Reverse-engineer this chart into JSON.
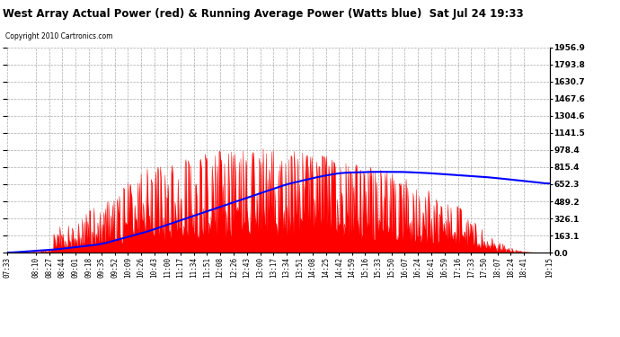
{
  "title": "West Array Actual Power (red) & Running Average Power (Watts blue)  Sat Jul 24 19:33",
  "copyright": "Copyright 2010 Cartronics.com",
  "ymax": 1956.9,
  "yticks": [
    0.0,
    163.1,
    326.1,
    489.2,
    652.3,
    815.4,
    978.4,
    1141.5,
    1304.6,
    1467.6,
    1630.7,
    1793.8,
    1956.9
  ],
  "background_color": "#ffffff",
  "grid_color": "#aaaaaa",
  "actual_color": "#ff0000",
  "avg_color": "#0000ff",
  "tick_times": [
    "07:33",
    "08:10",
    "08:27",
    "08:44",
    "09:01",
    "09:18",
    "09:35",
    "09:52",
    "10:09",
    "10:26",
    "10:43",
    "11:00",
    "11:17",
    "11:34",
    "11:51",
    "12:08",
    "12:26",
    "12:43",
    "13:00",
    "13:17",
    "13:34",
    "13:51",
    "14:08",
    "14:25",
    "14:42",
    "14:59",
    "15:16",
    "15:33",
    "15:50",
    "16:07",
    "16:24",
    "16:41",
    "16:59",
    "17:16",
    "17:33",
    "17:50",
    "18:07",
    "18:24",
    "18:41",
    "19:15"
  ]
}
